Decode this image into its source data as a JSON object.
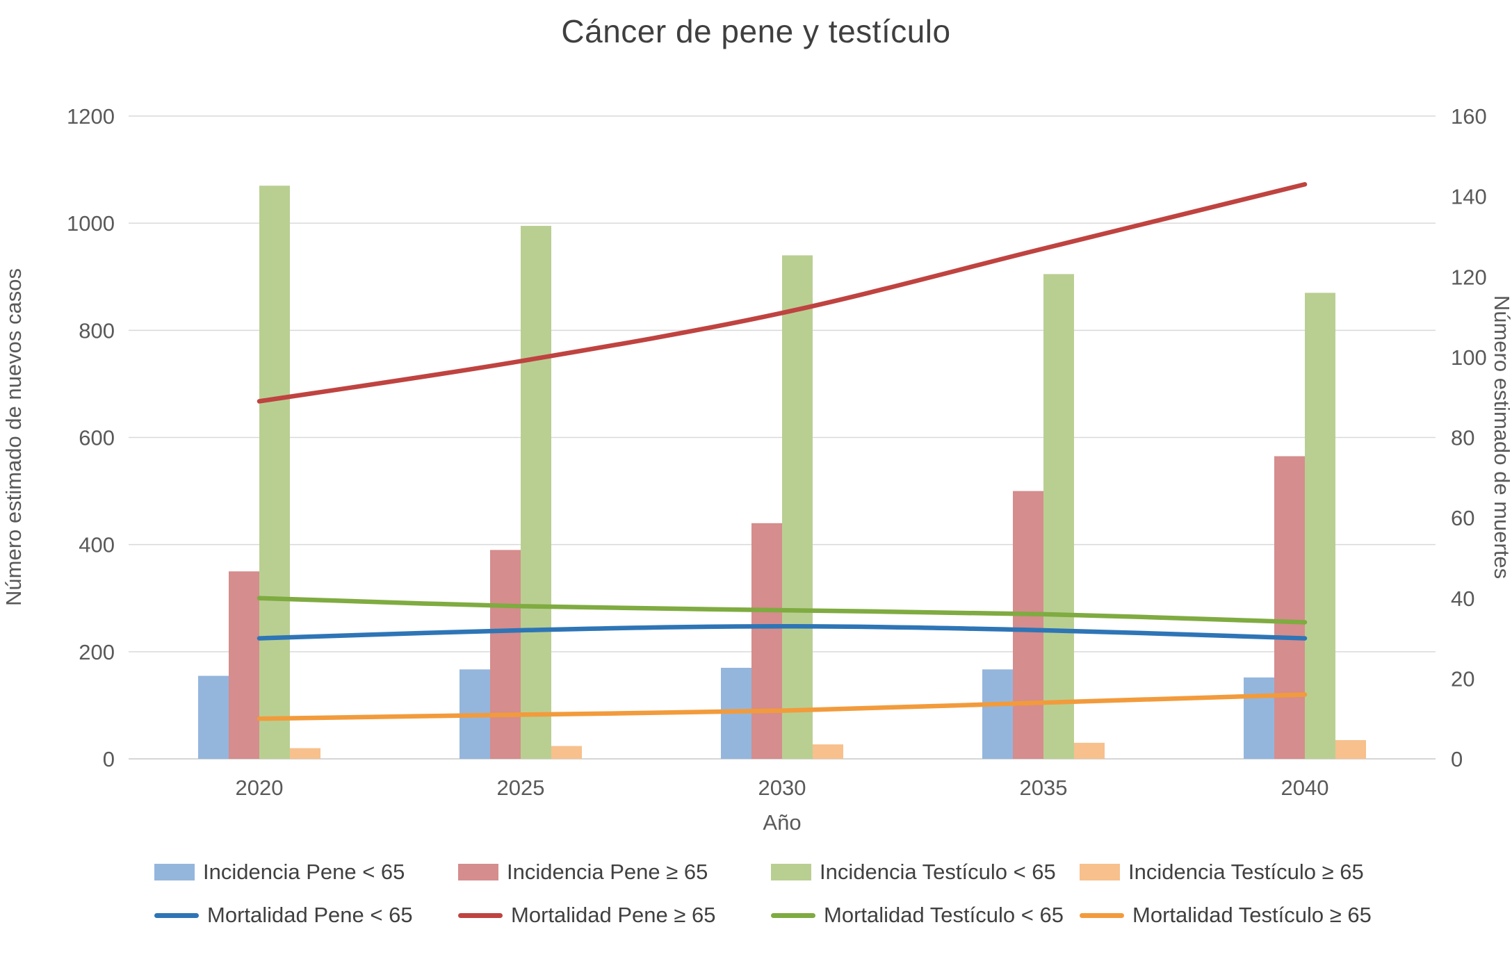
{
  "chart_data": {
    "type": "combo",
    "title": "Cáncer de pene y testículo",
    "xlabel": "Año",
    "x": [
      "2020",
      "2025",
      "2030",
      "2035",
      "2040"
    ],
    "left_axis": {
      "label": "Número estimado de nuevos casos",
      "min": 0,
      "max": 1200,
      "step": 200,
      "ticks": [
        0,
        200,
        400,
        600,
        800,
        1000,
        1200
      ]
    },
    "right_axis": {
      "label": "Número estimado de muertes",
      "min": 0,
      "max": 160,
      "step": 20,
      "ticks": [
        0,
        20,
        40,
        60,
        80,
        100,
        120,
        140,
        160
      ]
    },
    "grid": true,
    "legend_position": "bottom",
    "bar_series": [
      {
        "name": "Incidencia Pene < 65",
        "axis": "left",
        "color": "#94b6dd",
        "values": [
          155,
          167,
          170,
          167,
          152
        ]
      },
      {
        "name": "Incidencia Pene ≥ 65",
        "axis": "left",
        "color": "#d58d8d",
        "values": [
          350,
          390,
          440,
          500,
          565
        ]
      },
      {
        "name": "Incidencia Testículo < 65",
        "axis": "left",
        "color": "#b9cf92",
        "values": [
          1070,
          995,
          940,
          905,
          870
        ]
      },
      {
        "name": "Incidencia Testículo ≥ 65",
        "axis": "left",
        "color": "#f7c08c",
        "values": [
          20,
          24,
          27,
          30,
          35
        ]
      }
    ],
    "line_series": [
      {
        "name": "Mortalidad Pene < 65",
        "axis": "right",
        "color": "#2e75b6",
        "values": [
          30,
          32,
          33,
          32,
          30
        ]
      },
      {
        "name": "Mortalidad Pene ≥ 65",
        "axis": "right",
        "color": "#bf4340",
        "values": [
          89,
          99,
          111,
          127,
          143
        ]
      },
      {
        "name": "Mortalidad Testículo < 65",
        "axis": "right",
        "color": "#7fab41",
        "values": [
          40,
          38,
          37,
          36,
          34
        ]
      },
      {
        "name": "Mortalidad Testículo ≥ 65",
        "axis": "right",
        "color": "#f29b3c",
        "values": [
          10,
          11,
          12,
          14,
          16
        ]
      }
    ]
  }
}
